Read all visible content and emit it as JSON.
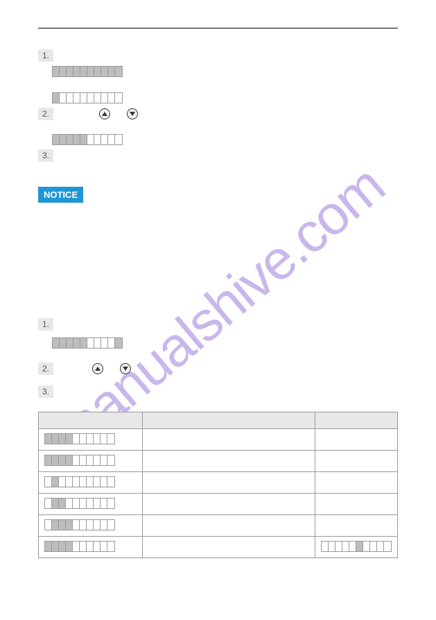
{
  "watermark": "manualshive.com",
  "notice_label": "NOTICE",
  "section1": {
    "steps": [
      "1.",
      "2.",
      "3."
    ],
    "bar1_pattern": "ffffffffff",
    "bar2_pattern": "feeeeeeeee",
    "bar3_pattern": "fffffeeeee"
  },
  "section2": {
    "steps": [
      "1.",
      "2.",
      "3."
    ],
    "bar1_pattern": "fffffeeeef"
  },
  "icons": {
    "up": "up-triangle",
    "down": "down-triangle"
  },
  "table": {
    "headers": [
      "",
      "",
      ""
    ],
    "rows": [
      {
        "bar": "ffffeeeeee",
        "c2": "",
        "c3": ""
      },
      {
        "bar": "ffffeeeeee",
        "c2": "",
        "c3": ""
      },
      {
        "bar": "efeeeeeeee",
        "c2": "",
        "c3": ""
      },
      {
        "bar": "effeeeeeee",
        "c2": "",
        "c3": ""
      },
      {
        "bar": "efffeeeeee",
        "c2": "",
        "c3": ""
      },
      {
        "bar": "ffffeeeeee",
        "c2": "",
        "c3_bar": "eeeeefeeee"
      }
    ]
  },
  "colors": {
    "cell_filled": "#bdbdbd",
    "cell_empty": "#ffffff",
    "cell_border": "#999999",
    "step_bg": "#e8e8e8",
    "notice_bg": "#2196d4",
    "table_header_bg": "#e8e8e8",
    "watermark_color": "rgba(100,50,200,0.35)"
  }
}
